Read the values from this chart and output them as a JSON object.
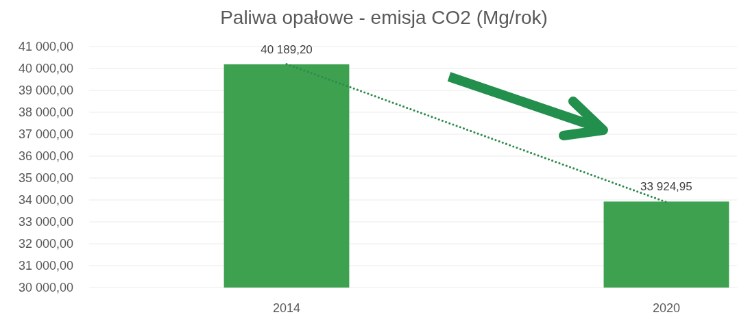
{
  "chart_data": {
    "type": "bar",
    "title": "Paliwa opałowe - emisja CO2 (Mg/rok)",
    "categories": [
      "2014",
      "2020"
    ],
    "series": [
      {
        "color": "#3da14f",
        "values": [
          40189.2,
          33924.95
        ],
        "value_labels": [
          "40 189,20",
          "33 924,95"
        ]
      },
      {
        "type": "line",
        "color": "#2e8b4e",
        "values": [
          40200,
          33900
        ],
        "line_style": "dotted"
      }
    ],
    "ylim": [
      30000,
      41000
    ],
    "yticks": [
      {
        "value": 30000,
        "label": "30 000,00"
      },
      {
        "value": 31000,
        "label": "31 000,00"
      },
      {
        "value": 32000,
        "label": "32 000,00"
      },
      {
        "value": 33000,
        "label": "33 000,00"
      },
      {
        "value": 34000,
        "label": "34 000,00"
      },
      {
        "value": 35000,
        "label": "35 000,00"
      },
      {
        "value": 36000,
        "label": "36 000,00"
      },
      {
        "value": 37000,
        "label": "37 000,00"
      },
      {
        "value": 38000,
        "label": "38 000,00"
      },
      {
        "value": 39000,
        "label": "39 000,00"
      },
      {
        "value": 40000,
        "label": "40 000,00"
      },
      {
        "value": 41000,
        "label": "41 000,00"
      }
    ],
    "grid": "y"
  }
}
